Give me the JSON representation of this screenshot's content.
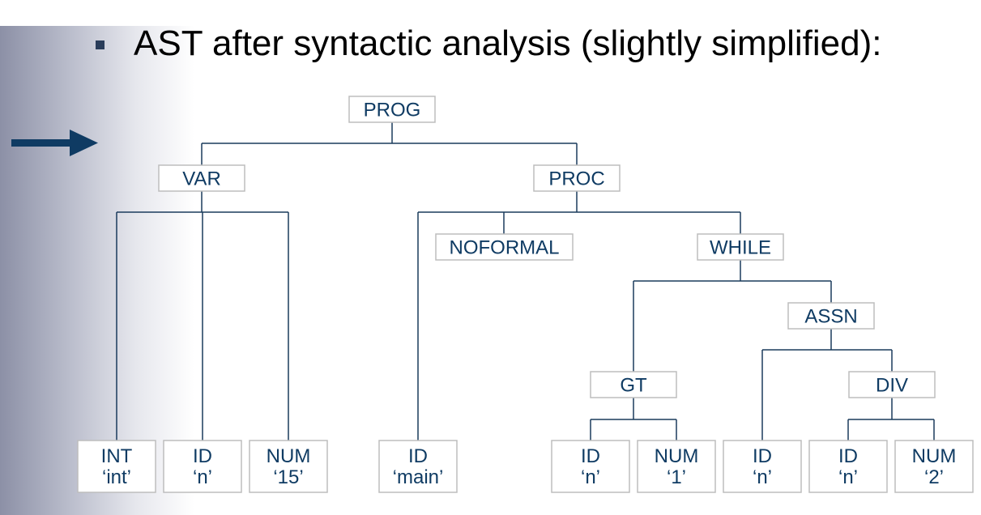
{
  "heading": {
    "bullet_icon": "square-bullet-icon",
    "text": "AST after syntactic analysis (slightly simplified):"
  },
  "arrow_icon": "right-arrow-icon",
  "colors": {
    "node_text": "#0f3b63",
    "edge": "#1a3b5c",
    "arrow": "#0f3b63",
    "node_border": "#bdbdbd"
  },
  "tree": {
    "nodes": [
      {
        "id": "prog",
        "label": "PROG"
      },
      {
        "id": "var",
        "label": "VAR"
      },
      {
        "id": "proc",
        "label": "PROC"
      },
      {
        "id": "int",
        "label": "INT",
        "sub": "‘int’"
      },
      {
        "id": "id_n1",
        "label": "ID",
        "sub": "‘n’"
      },
      {
        "id": "num15",
        "label": "NUM",
        "sub": "‘15’"
      },
      {
        "id": "id_main",
        "label": "ID",
        "sub": "‘main’"
      },
      {
        "id": "noformal",
        "label": "NOFORMAL"
      },
      {
        "id": "while",
        "label": "WHILE"
      },
      {
        "id": "gt",
        "label": "GT"
      },
      {
        "id": "assn",
        "label": "ASSN"
      },
      {
        "id": "id_n2",
        "label": "ID",
        "sub": "‘n’"
      },
      {
        "id": "num1",
        "label": "NUM",
        "sub": "‘1’"
      },
      {
        "id": "id_n3",
        "label": "ID",
        "sub": "‘n’"
      },
      {
        "id": "div",
        "label": "DIV"
      },
      {
        "id": "id_n4",
        "label": "ID",
        "sub": "‘n’"
      },
      {
        "id": "num2",
        "label": "NUM",
        "sub": "‘2’"
      }
    ],
    "edges": [
      {
        "parent": "prog",
        "children": [
          "var",
          "proc"
        ]
      },
      {
        "parent": "var",
        "children": [
          "int",
          "id_n1",
          "num15"
        ]
      },
      {
        "parent": "proc",
        "children": [
          "id_main",
          "noformal",
          "while"
        ]
      },
      {
        "parent": "while",
        "children": [
          "gt",
          "assn"
        ]
      },
      {
        "parent": "gt",
        "children": [
          "id_n2",
          "num1"
        ]
      },
      {
        "parent": "assn",
        "children": [
          "id_n3",
          "div"
        ]
      },
      {
        "parent": "div",
        "children": [
          "id_n4",
          "num2"
        ]
      }
    ]
  }
}
